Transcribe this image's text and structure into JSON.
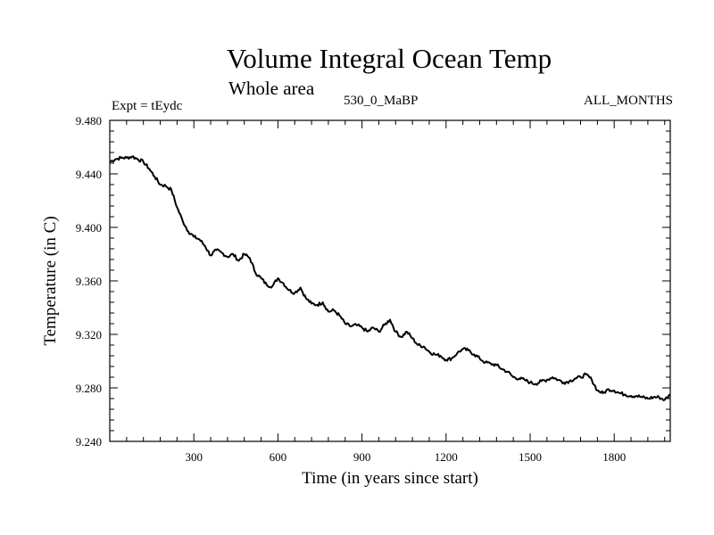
{
  "chart_data": {
    "type": "line",
    "title": "Volume Integral Ocean Temp",
    "subtitle": "Whole area",
    "left_label": "Expt = tEydc",
    "center_label": "530_0_MaBP",
    "right_label": "ALL_MONTHS",
    "xlabel": "Time (in years since start)",
    "ylabel": "Temperature (in C)",
    "xlim": [
      0,
      2000
    ],
    "ylim": [
      9.24,
      9.48
    ],
    "x_ticks": [
      300,
      600,
      900,
      1200,
      1500,
      1800
    ],
    "y_ticks": [
      "9.240",
      "9.280",
      "9.320",
      "9.360",
      "9.400",
      "9.440",
      "9.480"
    ],
    "series": [
      {
        "name": "tEydc",
        "color": "#000000",
        "x": [
          0,
          20,
          40,
          60,
          80,
          100,
          120,
          140,
          160,
          180,
          200,
          220,
          240,
          260,
          280,
          300,
          320,
          340,
          360,
          380,
          400,
          420,
          440,
          460,
          480,
          500,
          520,
          540,
          560,
          580,
          600,
          620,
          640,
          660,
          680,
          700,
          720,
          740,
          760,
          780,
          800,
          820,
          840,
          860,
          880,
          900,
          920,
          940,
          960,
          980,
          1000,
          1020,
          1040,
          1060,
          1080,
          1100,
          1120,
          1140,
          1160,
          1180,
          1200,
          1220,
          1240,
          1260,
          1280,
          1300,
          1320,
          1340,
          1360,
          1380,
          1400,
          1420,
          1440,
          1460,
          1480,
          1500,
          1520,
          1540,
          1560,
          1580,
          1600,
          1620,
          1640,
          1660,
          1680,
          1700,
          1720,
          1740,
          1760,
          1780,
          1800,
          1820,
          1840,
          1860,
          1880,
          1900,
          1920,
          1940,
          1960,
          1980,
          2000
        ],
        "values": [
          9.449,
          9.451,
          9.452,
          9.452,
          9.453,
          9.451,
          9.449,
          9.444,
          9.438,
          9.432,
          9.431,
          9.428,
          9.415,
          9.405,
          9.397,
          9.393,
          9.391,
          9.386,
          9.379,
          9.383,
          9.381,
          9.378,
          9.38,
          9.375,
          9.38,
          9.377,
          9.366,
          9.362,
          9.357,
          9.356,
          9.362,
          9.358,
          9.353,
          9.351,
          9.355,
          9.347,
          9.343,
          9.342,
          9.344,
          9.337,
          9.338,
          9.334,
          9.328,
          9.326,
          9.327,
          9.325,
          9.322,
          9.325,
          9.322,
          9.327,
          9.331,
          9.322,
          9.318,
          9.322,
          9.317,
          9.312,
          9.311,
          9.307,
          9.305,
          9.304,
          9.301,
          9.302,
          9.306,
          9.309,
          9.308,
          9.305,
          9.302,
          9.299,
          9.298,
          9.297,
          9.294,
          9.292,
          9.288,
          9.287,
          9.286,
          9.284,
          9.283,
          9.285,
          9.286,
          9.288,
          9.286,
          9.284,
          9.285,
          9.287,
          9.288,
          9.29,
          9.286,
          9.278,
          9.276,
          9.279,
          9.278,
          9.276,
          9.275,
          9.274,
          9.274,
          9.273,
          9.272,
          9.273,
          9.273,
          9.271,
          9.275
        ]
      }
    ]
  }
}
